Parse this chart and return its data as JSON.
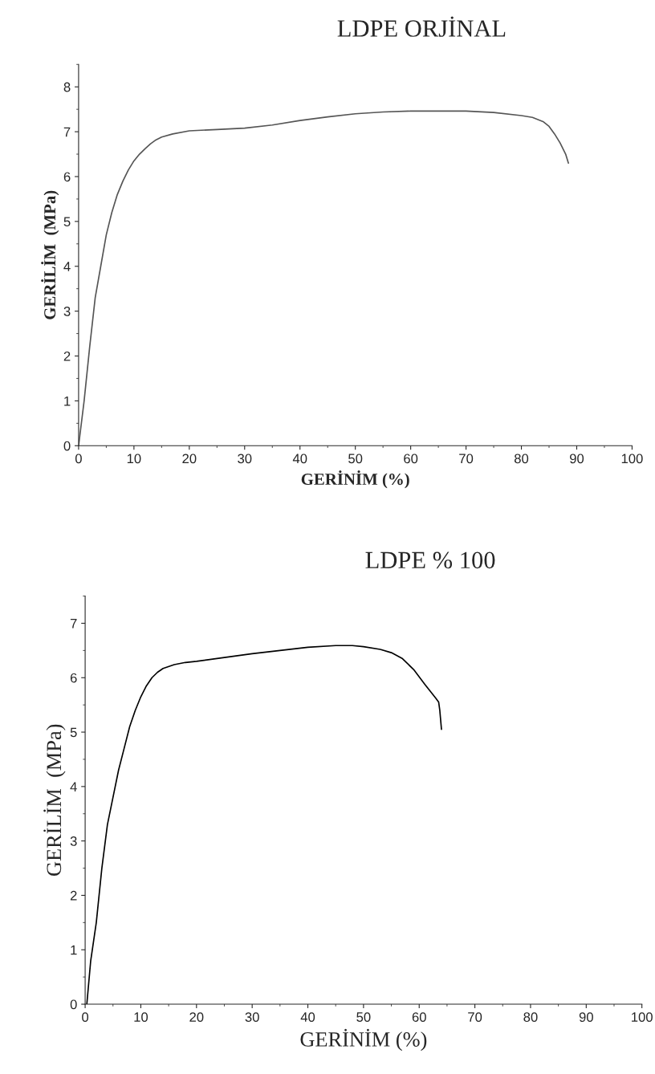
{
  "chart_data": [
    {
      "type": "line",
      "title": "LDPE ORJİNAL",
      "xlabel": "GERİNİM (%)",
      "ylabel": "GERİLİM  (MPa)",
      "xlim": [
        0,
        100
      ],
      "ylim": [
        0,
        8.5
      ],
      "xticks": [
        0,
        10,
        20,
        30,
        40,
        50,
        60,
        70,
        80,
        90,
        100
      ],
      "yticks": [
        0,
        1,
        2,
        3,
        4,
        5,
        6,
        7,
        8
      ],
      "grid": false,
      "series": [
        {
          "color": "#555555",
          "x": [
            0,
            1,
            2,
            3,
            4,
            5,
            6,
            7,
            8,
            9,
            10,
            11,
            12,
            13,
            14,
            15,
            17,
            20,
            25,
            30,
            35,
            40,
            45,
            50,
            55,
            60,
            70,
            75,
            80,
            82,
            84,
            85,
            86,
            87,
            88,
            88.5
          ],
          "values": [
            0,
            1,
            2.2,
            3.3,
            4,
            4.7,
            5.2,
            5.6,
            5.9,
            6.15,
            6.35,
            6.5,
            6.62,
            6.73,
            6.82,
            6.88,
            6.95,
            7.02,
            7.05,
            7.08,
            7.15,
            7.25,
            7.33,
            7.4,
            7.44,
            7.46,
            7.46,
            7.43,
            7.36,
            7.32,
            7.22,
            7.12,
            6.95,
            6.75,
            6.5,
            6.3
          ]
        }
      ]
    },
    {
      "type": "line",
      "title": "LDPE % 100",
      "xlabel": "GERİNİM (%)",
      "ylabel": "GERİLİM  (MPa)",
      "xlim": [
        0,
        100
      ],
      "ylim": [
        0,
        7.5
      ],
      "xticks": [
        0,
        10,
        20,
        30,
        40,
        50,
        60,
        70,
        80,
        90,
        100
      ],
      "yticks": [
        0,
        1,
        2,
        3,
        4,
        5,
        6,
        7
      ],
      "grid": false,
      "series": [
        {
          "color": "#000000",
          "x": [
            0.3,
            1,
            2,
            3,
            4,
            5,
            6,
            7,
            8,
            9,
            10,
            11,
            12,
            13,
            14,
            16,
            18,
            20,
            25,
            30,
            35,
            40,
            45,
            48,
            50,
            53,
            55,
            57,
            59,
            61,
            62,
            63,
            63.5,
            63.7,
            64
          ],
          "values": [
            0,
            0.8,
            1.5,
            2.5,
            3.3,
            3.8,
            4.3,
            4.7,
            5.1,
            5.4,
            5.65,
            5.85,
            6.0,
            6.1,
            6.17,
            6.24,
            6.28,
            6.3,
            6.37,
            6.44,
            6.5,
            6.56,
            6.59,
            6.59,
            6.57,
            6.52,
            6.46,
            6.35,
            6.15,
            5.88,
            5.75,
            5.62,
            5.55,
            5.4,
            5.05
          ]
        }
      ]
    }
  ]
}
